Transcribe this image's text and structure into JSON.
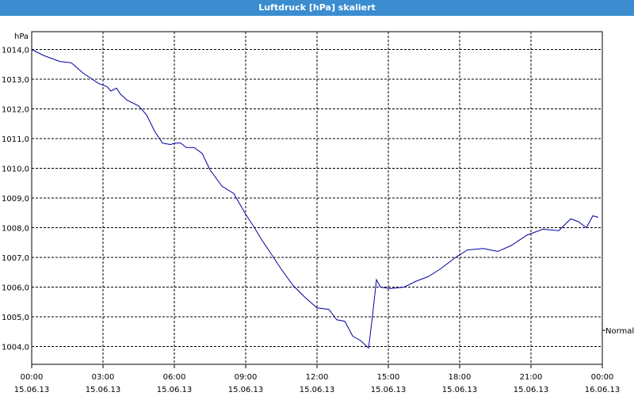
{
  "chart_data": {
    "type": "line",
    "title": "Luftdruck [hPa] skaliert",
    "y_label": "hPa",
    "xlim": [
      0,
      24
    ],
    "xticks": [
      {
        "value": 0,
        "label": "00:00",
        "date": "15.06.13"
      },
      {
        "value": 3,
        "label": "03:00",
        "date": "15.06.13"
      },
      {
        "value": 6,
        "label": "06:00",
        "date": "15.06.13"
      },
      {
        "value": 9,
        "label": "09:00",
        "date": "15.06.13"
      },
      {
        "value": 12,
        "label": "12:00",
        "date": "15.06.13"
      },
      {
        "value": 15,
        "label": "15:00",
        "date": "15.06.13"
      },
      {
        "value": 18,
        "label": "18:00",
        "date": "15.06.13"
      },
      {
        "value": 21,
        "label": "21:00",
        "date": "15.06.13"
      },
      {
        "value": 24,
        "label": "00:00",
        "date": "16.06.13"
      }
    ],
    "ylim": [
      1003.4,
      1014.6
    ],
    "yticks": [
      {
        "value": 1004,
        "label": "1004,0"
      },
      {
        "value": 1005,
        "label": "1005,0"
      },
      {
        "value": 1006,
        "label": "1006,0"
      },
      {
        "value": 1007,
        "label": "1007,0"
      },
      {
        "value": 1008,
        "label": "1008,0"
      },
      {
        "value": 1009,
        "label": "1009,0"
      },
      {
        "value": 1010,
        "label": "1010,0"
      },
      {
        "value": 1011,
        "label": "1011,0"
      },
      {
        "value": 1012,
        "label": "1012,0"
      },
      {
        "value": 1013,
        "label": "1013,0"
      },
      {
        "value": 1014,
        "label": "1014,0"
      }
    ],
    "grid": true,
    "series": [
      {
        "name": "Normal",
        "color": "#0000a0",
        "x": [
          0,
          0.5,
          1.17,
          1.67,
          2.17,
          2.83,
          3.17,
          3.33,
          3.57,
          3.73,
          4.0,
          4.5,
          4.83,
          5.17,
          5.5,
          5.83,
          6.07,
          6.27,
          6.5,
          6.83,
          7.17,
          7.5,
          8.0,
          8.5,
          9.0,
          9.33,
          9.67,
          10.17,
          10.5,
          11.0,
          11.5,
          12.0,
          12.5,
          12.83,
          13.17,
          13.5,
          13.83,
          14.17,
          14.33,
          14.5,
          14.67,
          15.07,
          15.67,
          16.17,
          16.67,
          17.17,
          17.83,
          18.33,
          19.0,
          19.6,
          20.17,
          20.83,
          21.5,
          22.17,
          22.67,
          23.0,
          23.33,
          23.6,
          23.83
        ],
        "values": [
          1014.0,
          1013.8,
          1013.6,
          1013.55,
          1013.2,
          1012.85,
          1012.75,
          1012.6,
          1012.7,
          1012.5,
          1012.3,
          1012.1,
          1011.8,
          1011.25,
          1010.85,
          1010.8,
          1010.85,
          1010.85,
          1010.7,
          1010.7,
          1010.5,
          1009.95,
          1009.4,
          1009.15,
          1008.45,
          1008.05,
          1007.6,
          1007.0,
          1006.6,
          1006.05,
          1005.65,
          1005.3,
          1005.25,
          1004.9,
          1004.85,
          1004.35,
          1004.2,
          1003.95,
          1005.0,
          1006.25,
          1006.0,
          1005.95,
          1006.0,
          1006.2,
          1006.35,
          1006.6,
          1007.0,
          1007.25,
          1007.3,
          1007.2,
          1007.4,
          1007.75,
          1007.95,
          1007.9,
          1008.3,
          1008.2,
          1008.0,
          1008.4,
          1008.35
        ]
      }
    ]
  }
}
